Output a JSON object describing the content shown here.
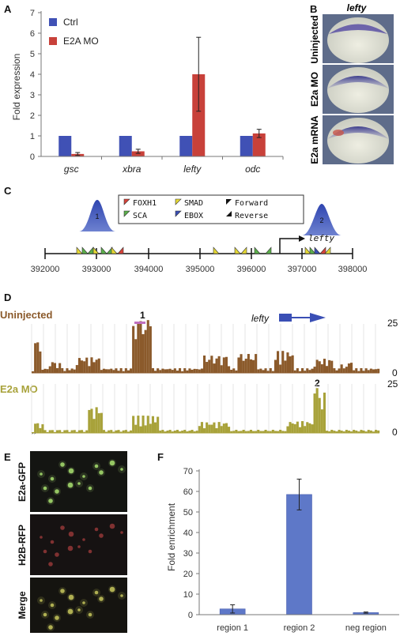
{
  "panel_letters": [
    "A",
    "B",
    "C",
    "D",
    "E",
    "F"
  ],
  "panel_a": {
    "chart_data": {
      "type": "bar",
      "categories": [
        "gsc",
        "xbra",
        "lefty",
        "odc"
      ],
      "series": [
        {
          "name": "Ctrl",
          "values": [
            1.0,
            1.0,
            1.0,
            1.0
          ],
          "errors": [
            0,
            0,
            0,
            0
          ],
          "color": "#4051b5"
        },
        {
          "name": "E2A MO",
          "values": [
            0.12,
            0.25,
            4.0,
            1.12
          ],
          "errors": [
            0.07,
            0.1,
            1.8,
            0.2
          ],
          "color": "#c8413a"
        }
      ],
      "ylabel": "Fold expression",
      "ylim": [
        0,
        7
      ],
      "yticks": [
        "0",
        "1",
        "2",
        "3",
        "4",
        "5",
        "6",
        "7"
      ],
      "legend": "top-left"
    }
  },
  "panel_b": {
    "title": "lefty",
    "rows": [
      "Uninjected",
      "E2a MO",
      "E2a mRNA"
    ]
  },
  "panel_c": {
    "legend": [
      "FOXH1",
      "SMAD",
      "Forward",
      "SCA",
      "EBOX",
      "Reverse"
    ],
    "gene": "lefty",
    "peaks": [
      "1",
      "2"
    ],
    "axis_ticks": [
      "392000",
      "393000",
      "394000",
      "395000",
      "396000",
      "397000",
      "398000"
    ],
    "colors": {
      "foxh1": "#d8433a",
      "smad": "#e6d935",
      "sca": "#5bb04a",
      "ebox": "#3a4fb5",
      "peak": "#3a4fb5"
    }
  },
  "panel_d": {
    "track1": {
      "label": "Uninjected",
      "ymax": "25",
      "ymin": "0",
      "peak": "1",
      "color": "#8b5a2b"
    },
    "track2": {
      "label": "E2a MO",
      "ymax": "25",
      "ymin": "0",
      "peak": "2",
      "color": "#a8a23a"
    },
    "gene": "lefty"
  },
  "panel_e": {
    "rows": [
      "E2a-GFP",
      "H2B-RFP",
      "Merge"
    ]
  },
  "panel_f": {
    "chart_data": {
      "type": "bar",
      "categories": [
        "region 1",
        "region 2",
        "neg region"
      ],
      "values": [
        2.8,
        58.5,
        1.0
      ],
      "errors": [
        2.0,
        7.5,
        0.3
      ],
      "ylabel": "Fold enrichment",
      "ylim": [
        0,
        70
      ],
      "yticks": [
        "0",
        "10",
        "20",
        "30",
        "40",
        "50",
        "60",
        "70"
      ],
      "color": "#5e78c8"
    }
  }
}
